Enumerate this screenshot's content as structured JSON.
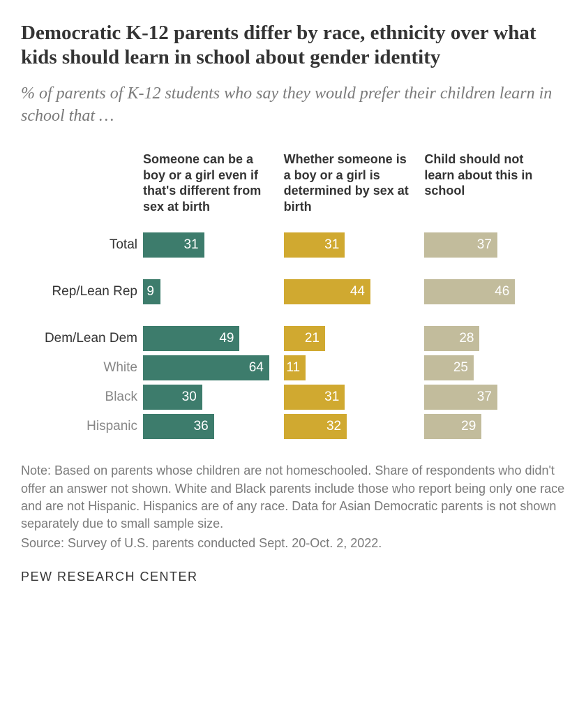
{
  "title": "Democratic K-12 parents differ by race, ethnicity over what kids should learn in school about gender identity",
  "title_fontsize": 29,
  "subtitle": "% of parents of K-12 students who say they would prefer their children learn in school that …",
  "subtitle_fontsize": 24,
  "chart": {
    "type": "bar",
    "max_value": 65,
    "header_fontsize": 18,
    "label_fontsize": 19,
    "value_fontsize": 19,
    "series": [
      {
        "header": "Someone can be a boy or a girl even if that's different from sex at birth",
        "color": "#3d7c6c"
      },
      {
        "header": "Whether someone is a boy or a girl is determined by sex at birth",
        "color": "#d0a930"
      },
      {
        "header": "Child should not learn about this in school",
        "color": "#c2bc9c"
      }
    ],
    "rows": [
      {
        "label": "Total",
        "values": [
          31,
          31,
          37
        ],
        "sublabel": false,
        "gap": false
      },
      {
        "label": "Rep/Lean Rep",
        "values": [
          9,
          44,
          46
        ],
        "sublabel": false,
        "gap": true
      },
      {
        "label": "Dem/Lean Dem",
        "values": [
          49,
          21,
          28
        ],
        "sublabel": false,
        "gap": true
      },
      {
        "label": "White",
        "values": [
          64,
          11,
          25
        ],
        "sublabel": true,
        "gap": false
      },
      {
        "label": "Black",
        "values": [
          30,
          31,
          37
        ],
        "sublabel": true,
        "gap": false
      },
      {
        "label": "Hispanic",
        "values": [
          36,
          32,
          29
        ],
        "sublabel": true,
        "gap": false
      }
    ]
  },
  "note": "Note: Based on parents whose children are not homeschooled. Share of respondents who didn't offer an answer not shown. White and Black parents include those who report being only one race and are not Hispanic. Hispanics are of any race. Data for Asian Democratic parents is not shown separately due to small sample size.",
  "source": "Source: Survey of U.S. parents conducted Sept. 20-Oct. 2, 2022.",
  "note_fontsize": 18,
  "footer": "PEW RESEARCH CENTER",
  "footer_fontsize": 18,
  "colors": {
    "title": "#343434",
    "subtitle": "#7a7a7a",
    "note": "#7a7a7a",
    "bar_text": "#ffffff",
    "background": "#ffffff"
  }
}
